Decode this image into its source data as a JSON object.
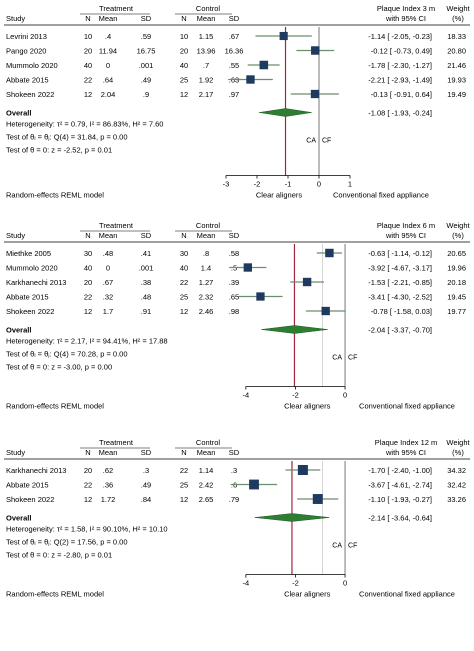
{
  "chart_data": [
    {
      "type": "forest",
      "group_header": {
        "treatment": "Treatment",
        "control": "Control"
      },
      "columns": {
        "study": "Study",
        "n": "N",
        "mean": "Mean",
        "sd": "SD",
        "effect": "Plaque Index 3 m",
        "ci": "with 95% CI",
        "weight": "Weight",
        "weight_unit": "(%)"
      },
      "studies": [
        {
          "name": "Levrini 2013",
          "t_n": "10",
          "t_mean": ".4",
          "t_sd": ".59",
          "c_n": "10",
          "c_mean": "1.15",
          "c_sd": ".67",
          "ci_text": "-1.14 [ -2.05, -0.23]",
          "weight": "18.33",
          "est": -1.14,
          "lo": -2.05,
          "hi": -0.23,
          "w": 18.33
        },
        {
          "name": "Pango 2020",
          "t_n": "20",
          "t_mean": "11.94",
          "t_sd": "16.75",
          "c_n": "20",
          "c_mean": "13.96",
          "c_sd": "16.36",
          "ci_text": "-0.12 [ -0.73, 0.49]",
          "weight": "20.80",
          "est": -0.12,
          "lo": -0.73,
          "hi": 0.49,
          "w": 20.8
        },
        {
          "name": "Mummolo 2020",
          "t_n": "40",
          "t_mean": "0",
          "t_sd": ".001",
          "c_n": "40",
          "c_mean": ".7",
          "c_sd": ".55",
          "ci_text": "-1.78 [ -2.30, -1.27]",
          "weight": "21.46",
          "est": -1.78,
          "lo": -2.3,
          "hi": -1.27,
          "w": 21.46
        },
        {
          "name": "Abbate 2015",
          "t_n": "22",
          "t_mean": ".64",
          "t_sd": ".49",
          "c_n": "25",
          "c_mean": "1.92",
          "c_sd": ".63",
          "ci_text": "-2.21 [ -2.93, -1.49]",
          "weight": "19.93",
          "est": -2.21,
          "lo": -2.93,
          "hi": -1.49,
          "w": 19.93
        },
        {
          "name": "Shokeen 2022",
          "t_n": "12",
          "t_mean": "2.04",
          "t_sd": ".9",
          "c_n": "12",
          "c_mean": "2.17",
          "c_sd": ".97",
          "ci_text": "-0.13 [ -0.91, 0.64]",
          "weight": "19.49",
          "est": -0.13,
          "lo": -0.91,
          "hi": 0.64,
          "w": 19.49
        }
      ],
      "overall": {
        "label": "Overall",
        "ci_text": "-1.08 [ -1.93, -0.24]",
        "est": -1.08,
        "lo": -1.93,
        "hi": -0.24
      },
      "stats": [
        "Heterogeneity: τ² = 0.79, I² = 86.83%, H² = 7.60",
        "Test of θᵢ = θⱼ: Q(4) = 31.84, p = 0.00",
        "Test of θ = 0: z = -2.52, p = 0.01"
      ],
      "side_labels": [
        "CA",
        "CF"
      ],
      "xlim": [
        -3,
        1
      ],
      "xticks": [
        -3,
        -2,
        -1,
        0,
        1
      ],
      "xtick_labels": [
        "-3",
        "-2",
        "-1",
        "0",
        "1"
      ],
      "favour_left": "Clear aligners",
      "favour_right": "Conventional fixed appliance",
      "model": "Random-effects REML model",
      "shade_ceiling": false
    },
    {
      "type": "forest",
      "group_header": {
        "treatment": "Treatment",
        "control": "Control"
      },
      "columns": {
        "study": "Study",
        "n": "N",
        "mean": "Mean",
        "sd": "SD",
        "effect": "Plaque Index 6 m",
        "ci": "with 95% CI",
        "weight": "Weight",
        "weight_unit": "(%)"
      },
      "studies": [
        {
          "name": "Miethke 2005",
          "t_n": "30",
          "t_mean": ".48",
          "t_sd": ".41",
          "c_n": "30",
          "c_mean": ".8",
          "c_sd": ".58",
          "ci_text": "-0.63 [ -1.14, -0.12]",
          "weight": "20.65",
          "est": -0.63,
          "lo": -1.14,
          "hi": -0.12,
          "w": 20.65
        },
        {
          "name": "Mummolo 2020",
          "t_n": "40",
          "t_mean": "0",
          "t_sd": ".001",
          "c_n": "40",
          "c_mean": "1.4",
          "c_sd": ".5",
          "ci_text": "-3.92 [ -4.67, -3.17]",
          "weight": "19.96",
          "est": -3.92,
          "lo": -4.67,
          "hi": -3.17,
          "w": 19.96
        },
        {
          "name": "Karkhanechi 2013",
          "t_n": "20",
          "t_mean": ".67",
          "t_sd": ".38",
          "c_n": "22",
          "c_mean": "1.27",
          "c_sd": ".39",
          "ci_text": "-1.53 [ -2.21, -0.85]",
          "weight": "20.18",
          "est": -1.53,
          "lo": -2.21,
          "hi": -0.85,
          "w": 20.18
        },
        {
          "name": "Abbate 2015",
          "t_n": "22",
          "t_mean": ".32",
          "t_sd": ".48",
          "c_n": "25",
          "c_mean": "2.32",
          "c_sd": ".65",
          "ci_text": "-3.41 [ -4.30, -2.52]",
          "weight": "19.45",
          "est": -3.41,
          "lo": -4.3,
          "hi": -2.52,
          "w": 19.45
        },
        {
          "name": "Shokeen 2022",
          "t_n": "12",
          "t_mean": "1.7",
          "t_sd": ".91",
          "c_n": "12",
          "c_mean": "2.46",
          "c_sd": ".98",
          "ci_text": "-0.78 [ -1.58, 0.03]",
          "weight": "19.77",
          "est": -0.78,
          "lo": -1.58,
          "hi": 0.03,
          "w": 19.77
        }
      ],
      "overall": {
        "label": "Overall",
        "ci_text": "-2.04 [ -3.37, -0.70]",
        "est": -2.04,
        "lo": -3.37,
        "hi": -0.7
      },
      "stats": [
        "Heterogeneity: τ² = 2.17, I² = 94.41%, H² = 17.88",
        "Test of θᵢ = θⱼ: Q(4) = 70.28, p = 0.00",
        "Test of θ = 0: z = -3.00, p = 0.00"
      ],
      "side_labels": [
        "CA",
        "CF"
      ],
      "xlim": [
        -4.8,
        0.2
      ],
      "xticks": [
        -4,
        -2,
        0
      ],
      "xtick_labels": [
        "-4",
        "-2",
        "0"
      ],
      "favour_left": "Clear aligners",
      "favour_right": "Conventional fixed appliance",
      "model": "Random-effects REML model",
      "shade_ceiling": true
    },
    {
      "type": "forest",
      "group_header": {
        "treatment": "Treatment",
        "control": "Control"
      },
      "columns": {
        "study": "Study",
        "n": "N",
        "mean": "Mean",
        "sd": "SD",
        "effect": "Plaque Index 12 m",
        "ci": "with 95% CI",
        "weight": "Weight",
        "weight_unit": "(%)"
      },
      "studies": [
        {
          "name": "Karkhanechi 2013",
          "t_n": "20",
          "t_mean": ".62",
          "t_sd": ".3",
          "c_n": "22",
          "c_mean": "1.14",
          "c_sd": ".3",
          "ci_text": "-1.70 [ -2.40, -1.00]",
          "weight": "34.32",
          "est": -1.7,
          "lo": -2.4,
          "hi": -1.0,
          "w": 34.32
        },
        {
          "name": "Abbate 2015",
          "t_n": "22",
          "t_mean": ".36",
          "t_sd": ".49",
          "c_n": "25",
          "c_mean": "2.42",
          "c_sd": ".6",
          "ci_text": "-3.67 [ -4.61, -2.74]",
          "weight": "32.42",
          "est": -3.67,
          "lo": -4.61,
          "hi": -2.74,
          "w": 32.42
        },
        {
          "name": "Shokeen 2022",
          "t_n": "12",
          "t_mean": "1.72",
          "t_sd": ".84",
          "c_n": "12",
          "c_mean": "2.65",
          "c_sd": ".79",
          "ci_text": "-1.10 [ -1.93, -0.27]",
          "weight": "33.26",
          "est": -1.1,
          "lo": -1.93,
          "hi": -0.27,
          "w": 33.26
        }
      ],
      "overall": {
        "label": "Overall",
        "ci_text": "-2.14 [ -3.64, -0.64]",
        "est": -2.14,
        "lo": -3.64,
        "hi": -0.64
      },
      "stats": [
        "Heterogeneity: τ² = 1.58, I² = 90.10%, H² = 10.10",
        "Test of θᵢ = θⱼ: Q(2) = 17.56, p = 0.00",
        "Test of θ = 0: z = -2.80, p = 0.01"
      ],
      "side_labels": [
        "CA",
        "CF"
      ],
      "xlim": [
        -4.8,
        0.2
      ],
      "xticks": [
        -4,
        -2,
        0
      ],
      "xtick_labels": [
        "-4",
        "-2",
        "0"
      ],
      "favour_left": "Clear aligners",
      "favour_right": "Conventional fixed appliance",
      "model": "Random-effects REML model",
      "shade_ceiling": true
    }
  ]
}
